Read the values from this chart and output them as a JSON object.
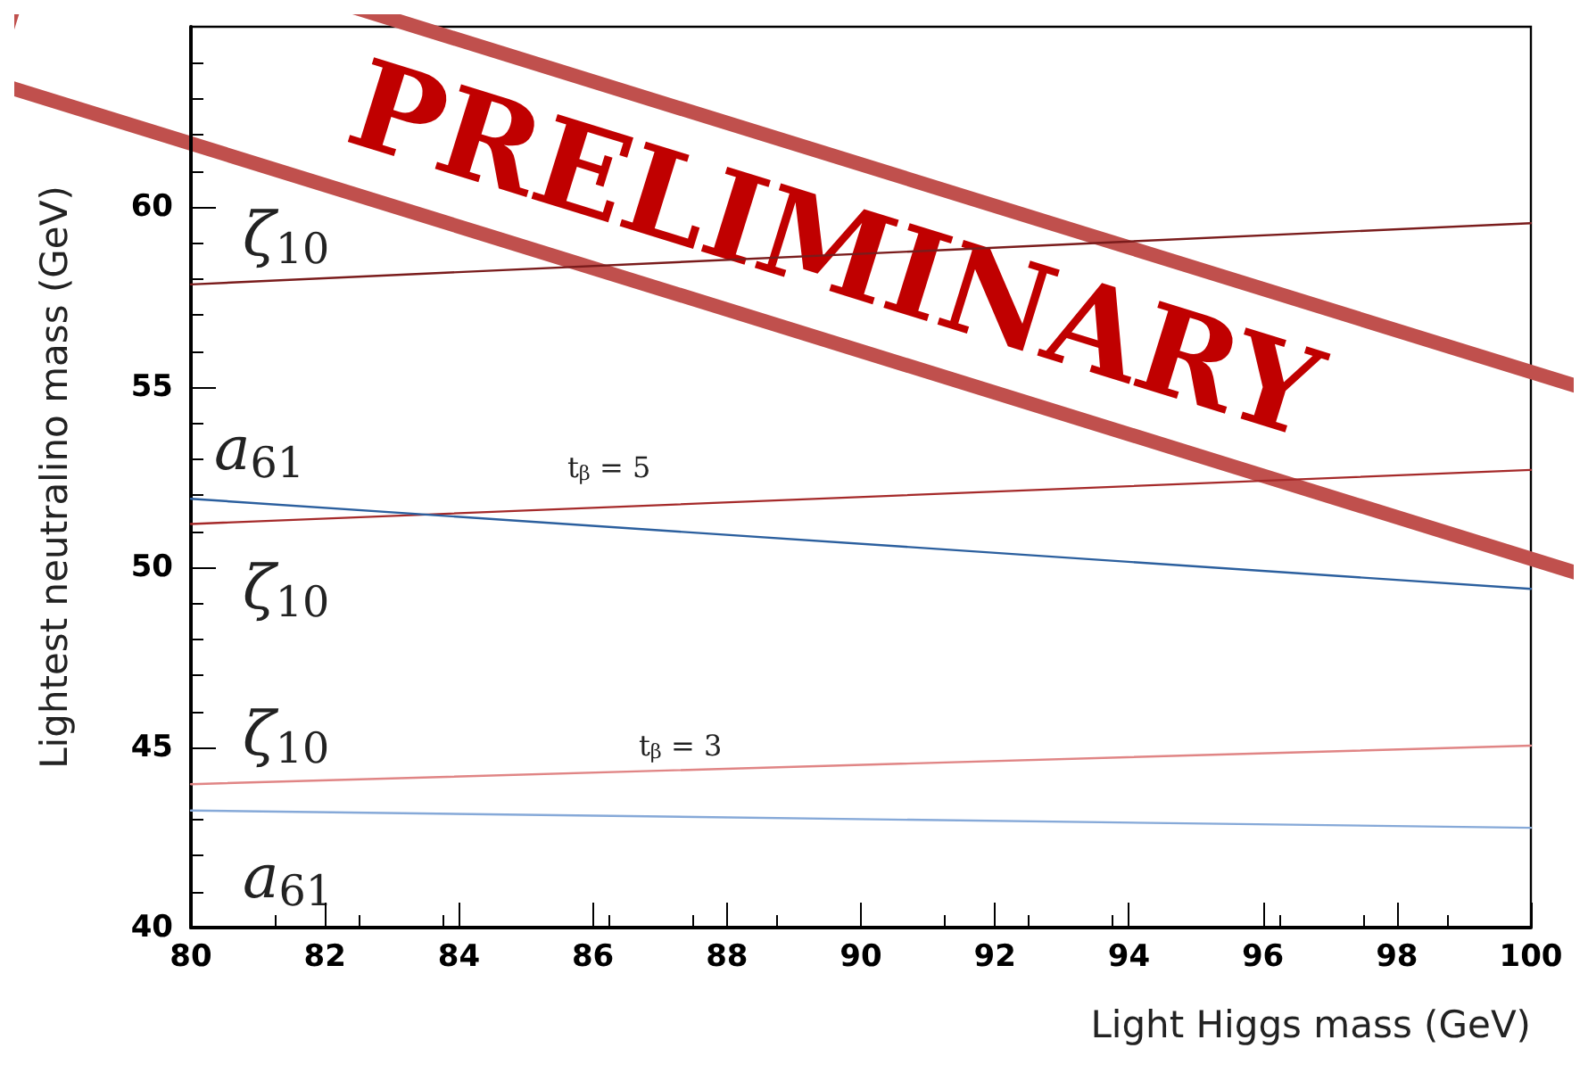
{
  "chart_data": {
    "type": "line",
    "xlabel": "Light Higgs mass (GeV)",
    "ylabel": "Lightest neutralino mass (GeV)",
    "xlim": [
      80,
      100
    ],
    "xticks": [
      80,
      82,
      84,
      86,
      88,
      90,
      92,
      94,
      96,
      98,
      100
    ],
    "ylim": [
      40,
      65
    ],
    "yticks": [
      40,
      45,
      50,
      55,
      60
    ],
    "grid": false,
    "marker": "none",
    "line_style": "solid",
    "x": [
      80,
      100
    ],
    "series": [
      {
        "color": "#7a1c1c",
        "values": [
          57.85,
          59.55
        ]
      },
      {
        "color": "#a52a2a",
        "values": [
          51.2,
          52.7
        ]
      },
      {
        "color": "#2b5f9e",
        "values": [
          51.9,
          49.4
        ]
      },
      {
        "color": "#e08585",
        "values": [
          43.98,
          45.05
        ]
      },
      {
        "color": "#86a9d8",
        "values": [
          43.25,
          42.77
        ]
      }
    ],
    "annotations": [
      "ζ$_{10}$",
      "a$_{61}$",
      "ζ$_{10}$",
      "ζ$_{10}$",
      "a$_{61}$",
      "t$_{β}$ = 5",
      "t$_{β}$ = 3",
      "PRELIMINARY"
    ]
  }
}
